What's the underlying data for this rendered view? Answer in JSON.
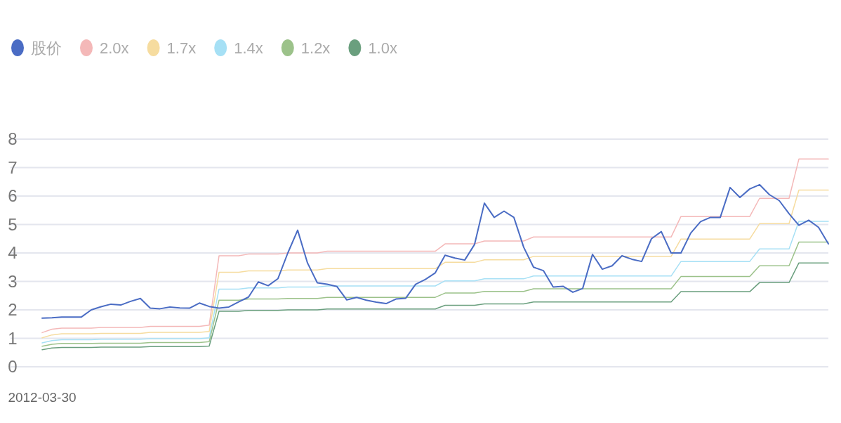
{
  "chart_data": {
    "type": "line",
    "categories": [
      "2012-03-30",
      null,
      null,
      null,
      null,
      null,
      null,
      null,
      null,
      null,
      null,
      null,
      null,
      null,
      null,
      null,
      null,
      null,
      null,
      null,
      null,
      null,
      null,
      null,
      null,
      null,
      null,
      null,
      null,
      null,
      null,
      null,
      null,
      null,
      null,
      null,
      null,
      null,
      null,
      null,
      null,
      null,
      null,
      null,
      null,
      null,
      null,
      null,
      null,
      null,
      null,
      null,
      null,
      null,
      null,
      null,
      null,
      null,
      null,
      null,
      null,
      null,
      null,
      null,
      null,
      null,
      null,
      null,
      null,
      null,
      null,
      null,
      null,
      null,
      null,
      null,
      null,
      null,
      null,
      null,
      null
    ],
    "ylim": [
      0,
      8
    ],
    "yticks": [
      0,
      1,
      2,
      3,
      4,
      5,
      6,
      7,
      8
    ],
    "grid": "y",
    "legend": "top left",
    "marker": "none",
    "line_style": "solid",
    "series": [
      {
        "name": "股价",
        "color": "#4a6cc4",
        "values": [
          1.71,
          1.72,
          1.75,
          1.75,
          1.75,
          2.0,
          2.11,
          2.2,
          2.17,
          2.3,
          2.4,
          2.06,
          2.04,
          2.1,
          2.07,
          2.06,
          2.24,
          2.12,
          2.06,
          2.1,
          2.28,
          2.45,
          2.98,
          2.85,
          3.1,
          4.0,
          4.8,
          3.65,
          2.95,
          2.9,
          2.82,
          2.35,
          2.44,
          2.34,
          2.27,
          2.22,
          2.38,
          2.41,
          2.9,
          3.07,
          3.3,
          3.92,
          3.82,
          3.75,
          4.3,
          5.75,
          5.25,
          5.47,
          5.25,
          4.2,
          3.5,
          3.38,
          2.8,
          2.83,
          2.62,
          2.75,
          3.95,
          3.43,
          3.55,
          3.9,
          3.78,
          3.7,
          4.5,
          4.75,
          4.0,
          4.0,
          4.7,
          5.1,
          5.25,
          5.25,
          6.3,
          5.95,
          6.25,
          6.4,
          6.05,
          5.84,
          5.38,
          4.97,
          5.15,
          4.9,
          4.32
        ]
      },
      {
        "name": "2.0x",
        "color": "#f4b8b8",
        "values": [
          1.2,
          1.32,
          1.36,
          1.36,
          1.36,
          1.36,
          1.38,
          1.38,
          1.38,
          1.38,
          1.38,
          1.42,
          1.42,
          1.42,
          1.42,
          1.42,
          1.42,
          1.46,
          3.9,
          3.9,
          3.9,
          3.96,
          3.96,
          3.96,
          3.96,
          4.0,
          4.0,
          4.0,
          4.0,
          4.06,
          4.06,
          4.06,
          4.06,
          4.06,
          4.06,
          4.06,
          4.06,
          4.06,
          4.06,
          4.06,
          4.06,
          4.32,
          4.32,
          4.32,
          4.32,
          4.42,
          4.42,
          4.42,
          4.42,
          4.42,
          4.56,
          4.56,
          4.56,
          4.56,
          4.56,
          4.56,
          4.56,
          4.56,
          4.56,
          4.56,
          4.56,
          4.56,
          4.56,
          4.56,
          4.56,
          5.28,
          5.28,
          5.28,
          5.28,
          5.28,
          5.28,
          5.28,
          5.28,
          5.92,
          5.92,
          5.92,
          5.92,
          7.3,
          7.3,
          7.3,
          7.3
        ]
      },
      {
        "name": "1.7x",
        "color": "#f6dc9f",
        "values": [
          1.02,
          1.12,
          1.16,
          1.16,
          1.16,
          1.16,
          1.17,
          1.17,
          1.17,
          1.17,
          1.17,
          1.21,
          1.21,
          1.21,
          1.21,
          1.21,
          1.21,
          1.24,
          3.32,
          3.32,
          3.32,
          3.37,
          3.37,
          3.37,
          3.37,
          3.4,
          3.4,
          3.4,
          3.4,
          3.45,
          3.45,
          3.45,
          3.45,
          3.45,
          3.45,
          3.45,
          3.45,
          3.45,
          3.45,
          3.45,
          3.45,
          3.67,
          3.67,
          3.67,
          3.67,
          3.76,
          3.76,
          3.76,
          3.76,
          3.76,
          3.88,
          3.88,
          3.88,
          3.88,
          3.88,
          3.88,
          3.88,
          3.88,
          3.88,
          3.88,
          3.88,
          3.88,
          3.88,
          3.88,
          3.88,
          4.49,
          4.49,
          4.49,
          4.49,
          4.49,
          4.49,
          4.49,
          4.49,
          5.03,
          5.03,
          5.03,
          5.03,
          6.21,
          6.21,
          6.21,
          6.21
        ]
      },
      {
        "name": "1.4x",
        "color": "#a6e0f5",
        "values": [
          0.84,
          0.92,
          0.95,
          0.95,
          0.95,
          0.95,
          0.97,
          0.97,
          0.97,
          0.97,
          0.97,
          0.99,
          0.99,
          0.99,
          0.99,
          0.99,
          0.99,
          1.02,
          2.73,
          2.73,
          2.73,
          2.77,
          2.77,
          2.77,
          2.77,
          2.8,
          2.8,
          2.8,
          2.8,
          2.84,
          2.84,
          2.84,
          2.84,
          2.84,
          2.84,
          2.84,
          2.84,
          2.84,
          2.84,
          2.84,
          2.84,
          3.02,
          3.02,
          3.02,
          3.02,
          3.09,
          3.09,
          3.09,
          3.09,
          3.09,
          3.19,
          3.19,
          3.19,
          3.19,
          3.19,
          3.19,
          3.19,
          3.19,
          3.19,
          3.19,
          3.19,
          3.19,
          3.19,
          3.19,
          3.19,
          3.7,
          3.7,
          3.7,
          3.7,
          3.7,
          3.7,
          3.7,
          3.7,
          4.14,
          4.14,
          4.14,
          4.14,
          5.11,
          5.11,
          5.11,
          5.11
        ]
      },
      {
        "name": "1.2x",
        "color": "#9cc28a",
        "values": [
          0.72,
          0.79,
          0.82,
          0.82,
          0.82,
          0.82,
          0.83,
          0.83,
          0.83,
          0.83,
          0.83,
          0.85,
          0.85,
          0.85,
          0.85,
          0.85,
          0.85,
          0.88,
          2.34,
          2.34,
          2.34,
          2.38,
          2.38,
          2.38,
          2.38,
          2.4,
          2.4,
          2.4,
          2.4,
          2.44,
          2.44,
          2.44,
          2.44,
          2.44,
          2.44,
          2.44,
          2.44,
          2.44,
          2.44,
          2.44,
          2.44,
          2.59,
          2.59,
          2.59,
          2.59,
          2.65,
          2.65,
          2.65,
          2.65,
          2.65,
          2.74,
          2.74,
          2.74,
          2.74,
          2.74,
          2.74,
          2.74,
          2.74,
          2.74,
          2.74,
          2.74,
          2.74,
          2.74,
          2.74,
          2.74,
          3.17,
          3.17,
          3.17,
          3.17,
          3.17,
          3.17,
          3.17,
          3.17,
          3.55,
          3.55,
          3.55,
          3.55,
          4.38,
          4.38,
          4.38,
          4.38
        ]
      },
      {
        "name": "1.0x",
        "color": "#6a9f7e",
        "values": [
          0.6,
          0.66,
          0.68,
          0.68,
          0.68,
          0.68,
          0.69,
          0.69,
          0.69,
          0.69,
          0.69,
          0.71,
          0.71,
          0.71,
          0.71,
          0.71,
          0.71,
          0.73,
          1.95,
          1.95,
          1.95,
          1.98,
          1.98,
          1.98,
          1.98,
          2.0,
          2.0,
          2.0,
          2.0,
          2.03,
          2.03,
          2.03,
          2.03,
          2.03,
          2.03,
          2.03,
          2.03,
          2.03,
          2.03,
          2.03,
          2.03,
          2.16,
          2.16,
          2.16,
          2.16,
          2.21,
          2.21,
          2.21,
          2.21,
          2.21,
          2.28,
          2.28,
          2.28,
          2.28,
          2.28,
          2.28,
          2.28,
          2.28,
          2.28,
          2.28,
          2.28,
          2.28,
          2.28,
          2.28,
          2.28,
          2.64,
          2.64,
          2.64,
          2.64,
          2.64,
          2.64,
          2.64,
          2.64,
          2.96,
          2.96,
          2.96,
          2.96,
          3.65,
          3.65,
          3.65,
          3.65
        ]
      }
    ]
  }
}
